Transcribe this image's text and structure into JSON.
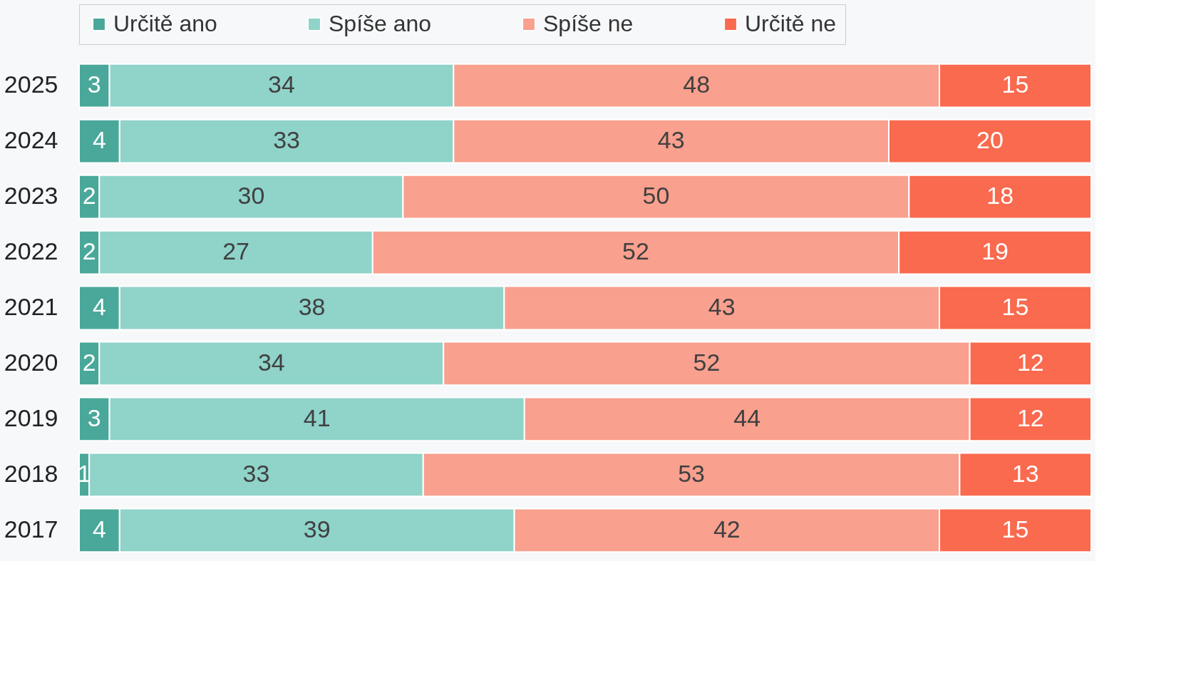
{
  "chart_data": {
    "type": "bar",
    "orientation": "horizontal",
    "stacked": true,
    "data_labels": true,
    "legend": "top",
    "tick_labels": "y",
    "grid": false,
    "categories": [
      "2025",
      "2024",
      "2023",
      "2022",
      "2021",
      "2020",
      "2019",
      "2018",
      "2017"
    ],
    "series": [
      {
        "name": "Určitě ano",
        "color": "#4aa89a",
        "values": [
          3,
          4,
          2,
          2,
          4,
          2,
          3,
          1,
          4
        ]
      },
      {
        "name": "Spíše ano",
        "color": "#8fd3c9",
        "values": [
          34,
          33,
          30,
          27,
          38,
          34,
          41,
          33,
          39
        ]
      },
      {
        "name": "Spíše ne",
        "color": "#f9a08e",
        "values": [
          48,
          43,
          50,
          52,
          43,
          52,
          44,
          53,
          42
        ]
      },
      {
        "name": "Určitě ne",
        "color": "#f96a4f",
        "values": [
          15,
          20,
          18,
          19,
          15,
          12,
          12,
          13,
          15
        ]
      }
    ]
  }
}
